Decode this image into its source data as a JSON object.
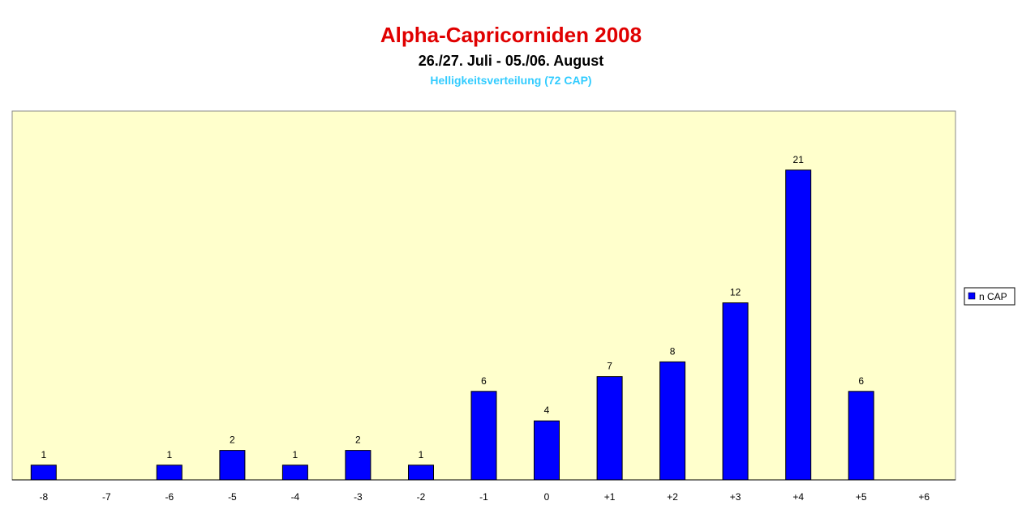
{
  "chart_data": {
    "type": "bar",
    "title": "Alpha-Capricorniden 2008",
    "subtitle": "26./27. Juli - 05./06. August",
    "subsubtitle": "Helligkeitsverteilung (72 CAP)",
    "categories": [
      "-8",
      "-7",
      "-6",
      "-5",
      "-4",
      "-3",
      "-2",
      "-1",
      "0",
      "+1",
      "+2",
      "+3",
      "+4",
      "+5",
      "+6"
    ],
    "series": [
      {
        "name": "n CAP",
        "color": "#0000ff",
        "values": [
          1,
          0,
          1,
          2,
          1,
          2,
          1,
          6,
          4,
          7,
          8,
          12,
          21,
          6,
          0
        ],
        "data_labels": [
          "1",
          "",
          "1",
          "2",
          "1",
          "2",
          "1",
          "6",
          "4",
          "7",
          "8",
          "12",
          "21",
          "6",
          ""
        ]
      }
    ],
    "xlabel": "",
    "ylabel": "",
    "ylim": [
      0,
      25
    ],
    "grid": false,
    "legend_position": "right",
    "colors": {
      "title": "#e00000",
      "subtitle": "#000000",
      "subsubtitle": "#33ccff",
      "plot_background": "#ffffcc",
      "bar": "#0000ff"
    }
  }
}
